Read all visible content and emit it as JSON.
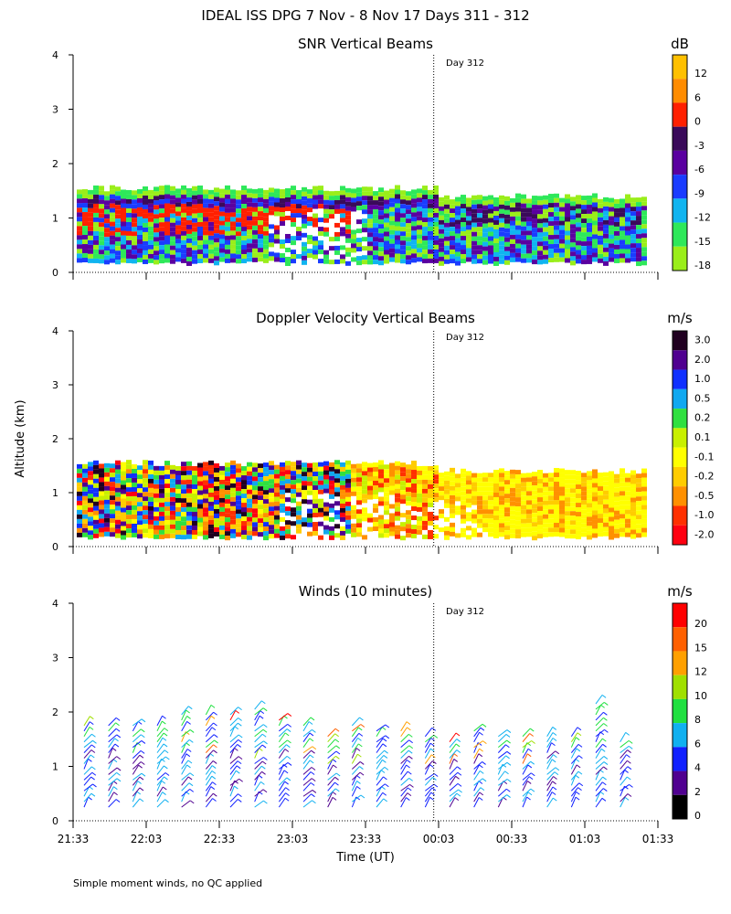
{
  "figure": {
    "title": "IDEAL ISS DPG   7 Nov -  8 Nov 17 Days 311 - 312",
    "ylabel": "Altitude (km)",
    "xlabel": "Time (UT)",
    "footnote": "Simple moment winds, no QC applied",
    "day_marker": "Day 312"
  },
  "chart_data": [
    {
      "type": "heatmap",
      "title": "SNR Vertical Beams",
      "ylim": [
        0,
        4
      ],
      "yticks": [
        0,
        1,
        2,
        3,
        4
      ],
      "x_ticks": [
        "21:33",
        "22:03",
        "22:33",
        "23:03",
        "23:33",
        "00:03",
        "00:33",
        "01:03",
        "01:33"
      ],
      "colorbar_unit": "dB",
      "colorbar_ticks": [
        "12",
        "6",
        "0",
        "-3",
        "-6",
        "-9",
        "-12",
        "-15",
        "-18"
      ],
      "colors": [
        "#ffc000",
        "#ff8c00",
        "#ff2000",
        "#3a0a5a",
        "#5a00a0",
        "#1a3cff",
        "#10b4f0",
        "#2ee85a",
        "#9aee1a"
      ],
      "day_boundary": "00:01",
      "echo_top_km": 1.55,
      "echo_base_km": 0.2
    },
    {
      "type": "heatmap",
      "title": "Doppler Velocity Vertical Beams",
      "ylim": [
        0,
        4
      ],
      "yticks": [
        0,
        1,
        2,
        3,
        4
      ],
      "x_ticks": [
        "21:33",
        "22:03",
        "22:33",
        "23:03",
        "23:33",
        "00:03",
        "00:33",
        "01:03",
        "01:33"
      ],
      "colorbar_unit": "m/s",
      "colorbar_ticks": [
        "3.0",
        "2.0",
        "1.0",
        "0.5",
        "0.2",
        "0.1",
        "-0.1",
        "-0.2",
        "-0.5",
        "-1.0",
        "-2.0"
      ],
      "colors": [
        "#200020",
        "#500090",
        "#1030ff",
        "#10a8f0",
        "#30e040",
        "#c8f000",
        "#ffff00",
        "#ffcc00",
        "#ff9000",
        "#ff3000",
        "#ff0010"
      ],
      "day_boundary": "00:01",
      "echo_top_km": 1.55,
      "echo_base_km": 0.2
    },
    {
      "type": "scatter",
      "title": "Winds (10 minutes)",
      "ylim": [
        0,
        4
      ],
      "yticks": [
        0,
        1,
        2,
        3,
        4
      ],
      "x_ticks": [
        "21:33",
        "22:03",
        "22:33",
        "23:03",
        "23:33",
        "00:03",
        "00:33",
        "01:03",
        "01:33"
      ],
      "colorbar_unit": "m/s",
      "colorbar_ticks": [
        "20",
        "15",
        "12",
        "10",
        "8",
        "6",
        "4",
        "2",
        "0"
      ],
      "colors": [
        "#ff0000",
        "#ff6000",
        "#ffa000",
        "#a0e000",
        "#20e040",
        "#10b0f0",
        "#1020ff",
        "#500090",
        "#000000"
      ],
      "day_boundary": "00:01",
      "profile_times": [
        "21:33",
        "21:43",
        "21:53",
        "22:03",
        "22:13",
        "22:23",
        "22:33",
        "22:43",
        "22:53",
        "23:03",
        "23:13",
        "23:23",
        "23:33",
        "23:43",
        "23:53",
        "00:03",
        "00:13",
        "00:23",
        "00:33",
        "00:43",
        "00:53",
        "01:03",
        "01:13"
      ],
      "profile_top_km": [
        1.8,
        1.85,
        1.85,
        1.8,
        2.0,
        2.0,
        2.0,
        2.1,
        1.9,
        1.8,
        1.6,
        1.8,
        1.7,
        1.7,
        1.6,
        1.5,
        1.7,
        1.6,
        1.6,
        1.6,
        1.6,
        2.2,
        1.5
      ]
    }
  ]
}
